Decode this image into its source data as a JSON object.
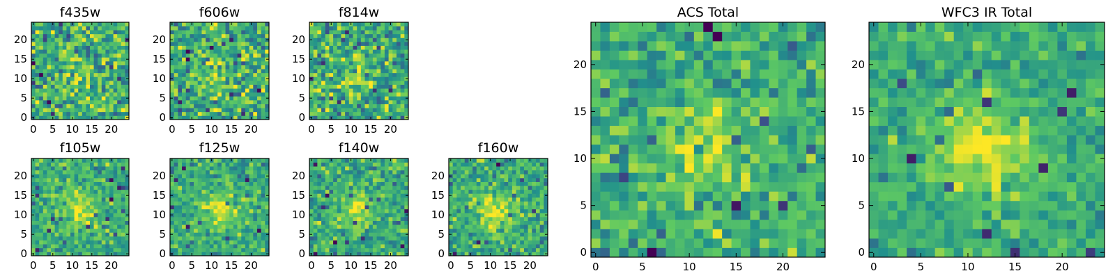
{
  "chart_data": [
    {
      "type": "heatmap",
      "title": "f435w",
      "xlim": [
        -0.5,
        24.5
      ],
      "ylim": [
        -0.5,
        24.5
      ],
      "xticks": [
        "0",
        "5",
        "10",
        "15",
        "20"
      ],
      "yticks": [
        "0",
        "5",
        "10",
        "15",
        "20"
      ],
      "grid_size": 25,
      "source_peak": 0.3,
      "noise_level": 0.85,
      "seed": 11
    },
    {
      "type": "heatmap",
      "title": "f606w",
      "xlim": [
        -0.5,
        24.5
      ],
      "ylim": [
        -0.5,
        24.5
      ],
      "xticks": [
        "0",
        "5",
        "10",
        "15",
        "20"
      ],
      "yticks": [
        "0",
        "5",
        "10",
        "15",
        "20"
      ],
      "grid_size": 25,
      "source_peak": 0.35,
      "noise_level": 0.8,
      "seed": 23
    },
    {
      "type": "heatmap",
      "title": "f814w",
      "xlim": [
        -0.5,
        24.5
      ],
      "ylim": [
        -0.5,
        24.5
      ],
      "xticks": [
        "0",
        "5",
        "10",
        "15",
        "20"
      ],
      "yticks": [
        "0",
        "5",
        "10",
        "15",
        "20"
      ],
      "grid_size": 25,
      "source_peak": 0.35,
      "noise_level": 0.8,
      "seed": 37
    },
    {
      "type": "heatmap",
      "title": "f105w",
      "xlim": [
        -0.5,
        24.5
      ],
      "ylim": [
        -0.5,
        24.5
      ],
      "xticks": [
        "0",
        "5",
        "10",
        "15",
        "20"
      ],
      "yticks": [
        "0",
        "5",
        "10",
        "15",
        "20"
      ],
      "grid_size": 25,
      "source_peak": 0.55,
      "noise_level": 0.55,
      "seed": 41
    },
    {
      "type": "heatmap",
      "title": "f125w",
      "xlim": [
        -0.5,
        24.5
      ],
      "ylim": [
        -0.5,
        24.5
      ],
      "xticks": [
        "0",
        "5",
        "10",
        "15",
        "20"
      ],
      "yticks": [
        "0",
        "5",
        "10",
        "15",
        "20"
      ],
      "grid_size": 25,
      "source_peak": 0.55,
      "noise_level": 0.55,
      "seed": 53
    },
    {
      "type": "heatmap",
      "title": "f140w",
      "xlim": [
        -0.5,
        24.5
      ],
      "ylim": [
        -0.5,
        24.5
      ],
      "xticks": [
        "0",
        "5",
        "10",
        "15",
        "20"
      ],
      "yticks": [
        "0",
        "5",
        "10",
        "15",
        "20"
      ],
      "grid_size": 25,
      "source_peak": 0.55,
      "noise_level": 0.6,
      "seed": 67
    },
    {
      "type": "heatmap",
      "title": "f160w",
      "xlim": [
        -0.5,
        24.5
      ],
      "ylim": [
        -0.5,
        24.5
      ],
      "xticks": [
        "0",
        "5",
        "10",
        "15",
        "20"
      ],
      "yticks": [
        "0",
        "5",
        "10",
        "15",
        "20"
      ],
      "grid_size": 25,
      "source_peak": 0.6,
      "noise_level": 0.6,
      "seed": 79
    },
    {
      "type": "heatmap",
      "title": "ACS Total",
      "xlim": [
        -0.5,
        24.5
      ],
      "ylim": [
        -0.5,
        24.5
      ],
      "xticks": [
        "0",
        "5",
        "10",
        "15",
        "20"
      ],
      "yticks": [
        "0",
        "5",
        "10",
        "15",
        "20"
      ],
      "grid_size": 25,
      "source_peak": 0.45,
      "noise_level": 0.6,
      "seed": 97
    },
    {
      "type": "heatmap",
      "title": "WFC3 IR Total",
      "xlim": [
        -0.5,
        24.5
      ],
      "ylim": [
        -0.5,
        24.5
      ],
      "xticks": [
        "0",
        "5",
        "10",
        "15",
        "20"
      ],
      "yticks": [
        "0",
        "5",
        "10",
        "15",
        "20"
      ],
      "grid_size": 25,
      "source_peak": 0.7,
      "noise_level": 0.45,
      "seed": 113
    }
  ],
  "colormap": [
    "#440154",
    "#3b528b",
    "#21918c",
    "#5ec962",
    "#fde725"
  ]
}
